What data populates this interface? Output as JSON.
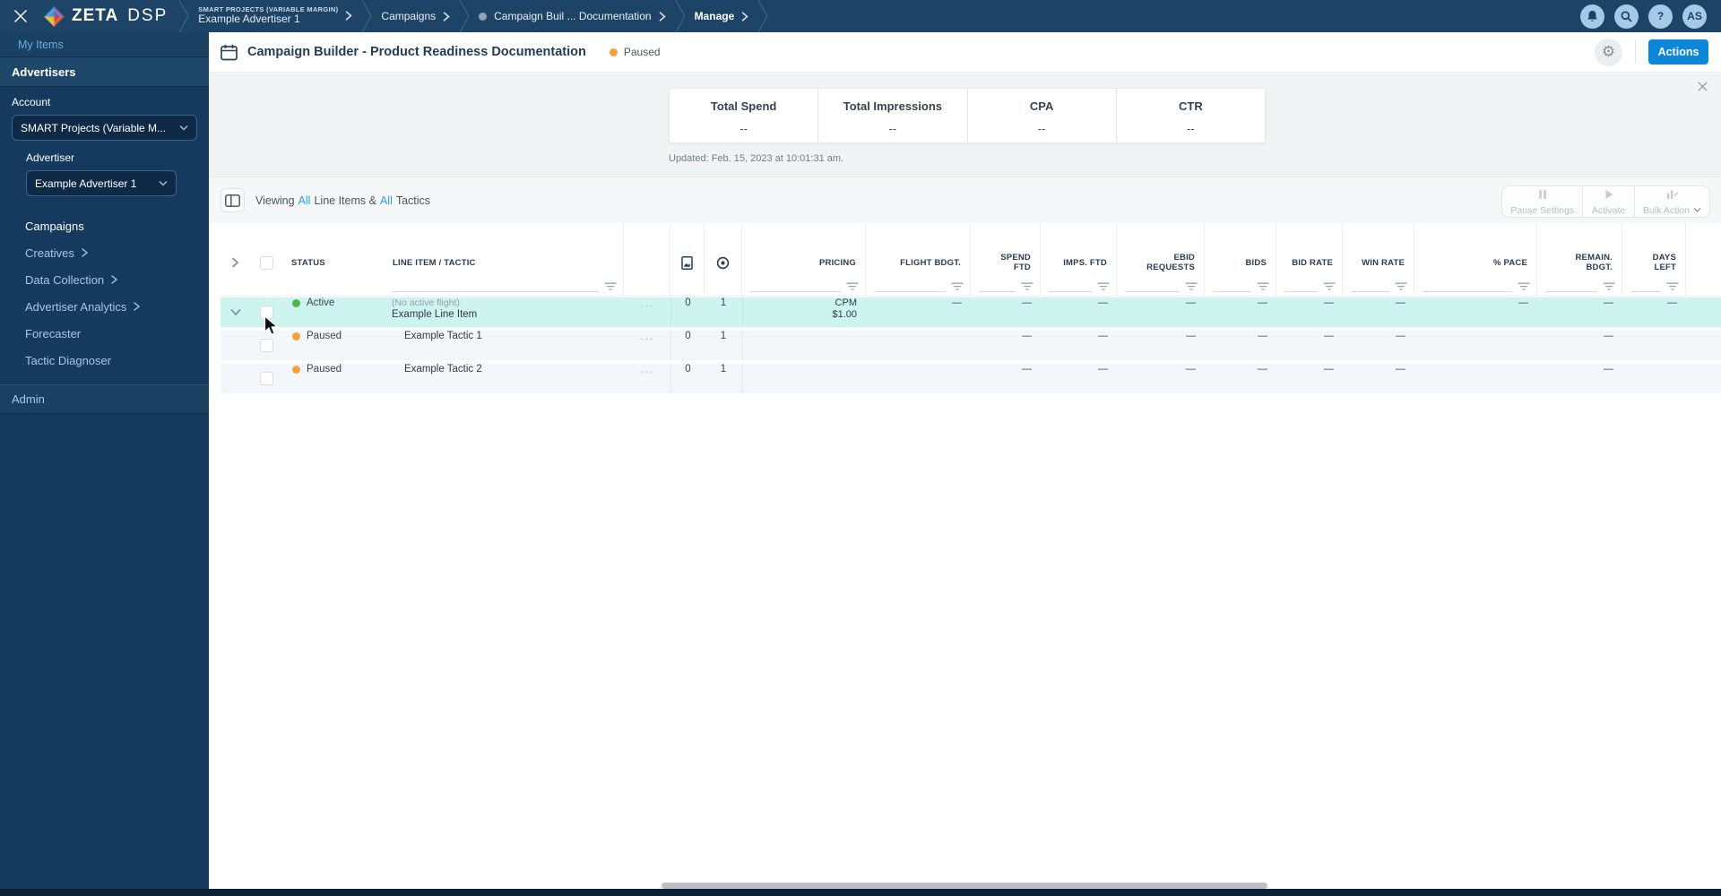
{
  "topbar": {
    "brand_zeta": "ZETA",
    "brand_dsp": "DSP",
    "breadcrumbs": [
      {
        "eyebrow": "SMART PROJECTS (VARIABLE MARGIN)",
        "label": "Example Advertiser 1"
      },
      {
        "label": "Campaigns"
      },
      {
        "label": "Campaign Buil ... Documentation",
        "dot": true
      },
      {
        "label": "Manage",
        "bold": true
      }
    ],
    "avatar_initials": "AS",
    "help_glyph": "?"
  },
  "sidebar": {
    "my_items": "My Items",
    "advertisers_label": "Advertisers",
    "account_label": "Account",
    "account_value": "SMART Projects (Variable M...",
    "advertiser_label": "Advertiser",
    "advertiser_value": "Example Advertiser 1",
    "nav": [
      {
        "label": "Campaigns",
        "active": true
      },
      {
        "label": "Creatives",
        "chevron": true
      },
      {
        "label": "Data Collection",
        "chevron": true
      },
      {
        "label": "Advertiser Analytics",
        "chevron": true
      },
      {
        "label": "Forecaster"
      },
      {
        "label": "Tactic Diagnoser"
      }
    ],
    "admin_label": "Admin"
  },
  "header": {
    "title": "Campaign Builder - Product Readiness Documentation",
    "status": "Paused",
    "actions_label": "Actions",
    "gear_glyph": "⚙"
  },
  "stats": {
    "items": [
      {
        "label": "Total Spend",
        "value": "--"
      },
      {
        "label": "Total Impressions",
        "value": "--"
      },
      {
        "label": "CPA",
        "value": "--"
      },
      {
        "label": "CTR",
        "value": "--"
      }
    ],
    "updated": "Updated: Feb. 15, 2023 at 10:01:31 am."
  },
  "toolbar": {
    "viewing": {
      "t1": "Viewing",
      "t2": "All",
      "t3": "Line Items &",
      "t4": "All",
      "t5": "Tactics"
    },
    "buttons": [
      {
        "label": "Pause Settings",
        "icon": "pause"
      },
      {
        "label": "Activate",
        "icon": "play"
      },
      {
        "label": "Bulk Action",
        "icon": "bulk",
        "dropdown": true
      }
    ]
  },
  "table": {
    "columns": [
      {
        "key": "status",
        "label": "STATUS"
      },
      {
        "key": "name",
        "label": "LINE ITEM / TACTIC"
      },
      {
        "key": "pricing",
        "label": "PRICING"
      },
      {
        "key": "flight_bdgt",
        "label": "FLIGHT BDGT."
      },
      {
        "key": "spend_ftd",
        "label": "SPEND\nFTD"
      },
      {
        "key": "imps_ftd",
        "label": "IMPS. FTD"
      },
      {
        "key": "ebid_requests",
        "label": "EBID\nREQUESTS"
      },
      {
        "key": "bids",
        "label": "BIDS"
      },
      {
        "key": "bid_rate",
        "label": "BID RATE"
      },
      {
        "key": "win_rate",
        "label": "WIN RATE"
      },
      {
        "key": "pace",
        "label": "% PACE"
      },
      {
        "key": "remain_bdgt",
        "label": "REMAIN.\nBDGT."
      },
      {
        "key": "days_left",
        "label": "DAYS\nLEFT"
      }
    ],
    "icon_columns": [
      {
        "key": "creatives",
        "icon": "creative-doc-icon"
      },
      {
        "key": "tactics",
        "icon": "tactic-target-icon"
      }
    ],
    "menu_glyph": "⋯",
    "rows": [
      {
        "kind": "line_item",
        "expanded": true,
        "highlight": true,
        "status": "Active",
        "status_color": "#52b54b",
        "name_sub": "(No active flight)",
        "name": "Example Line Item",
        "creatives": "0",
        "tactics": "1",
        "pricing_model": "CPM",
        "pricing_amount": "$1.00",
        "values": {
          "flight_bdgt": "—",
          "spend_ftd": "—",
          "imps_ftd": "—",
          "ebid_requests": "—",
          "bids": "—",
          "bid_rate": "—",
          "win_rate": "—",
          "pace": "—",
          "remain_bdgt": "—",
          "days_left": "—"
        }
      },
      {
        "kind": "tactic",
        "status": "Paused",
        "status_color": "#f2a33c",
        "name": "Example Tactic 1",
        "creatives": "0",
        "tactics": "1",
        "values": {
          "spend_ftd": "—",
          "imps_ftd": "—",
          "ebid_requests": "—",
          "bids": "—",
          "bid_rate": "—",
          "win_rate": "—",
          "remain_bdgt": "—"
        }
      },
      {
        "kind": "tactic",
        "status": "Paused",
        "status_color": "#f2a33c",
        "name": "Example Tactic 2",
        "creatives": "0",
        "tactics": "1",
        "values": {
          "spend_ftd": "—",
          "imps_ftd": "—",
          "ebid_requests": "—",
          "bids": "—",
          "bid_rate": "—",
          "win_rate": "—",
          "remain_bdgt": "—"
        }
      }
    ]
  },
  "colors": {
    "topbar_bg": "#1d4467",
    "sidebar_bg": "#16395e",
    "accent_blue": "#0c87da",
    "link_blue": "#2e9fe6",
    "row_highlight": "#cdf4ef",
    "row_alt": "#f3f7fa",
    "status_green": "#52b54b",
    "status_orange": "#f2a33c"
  }
}
